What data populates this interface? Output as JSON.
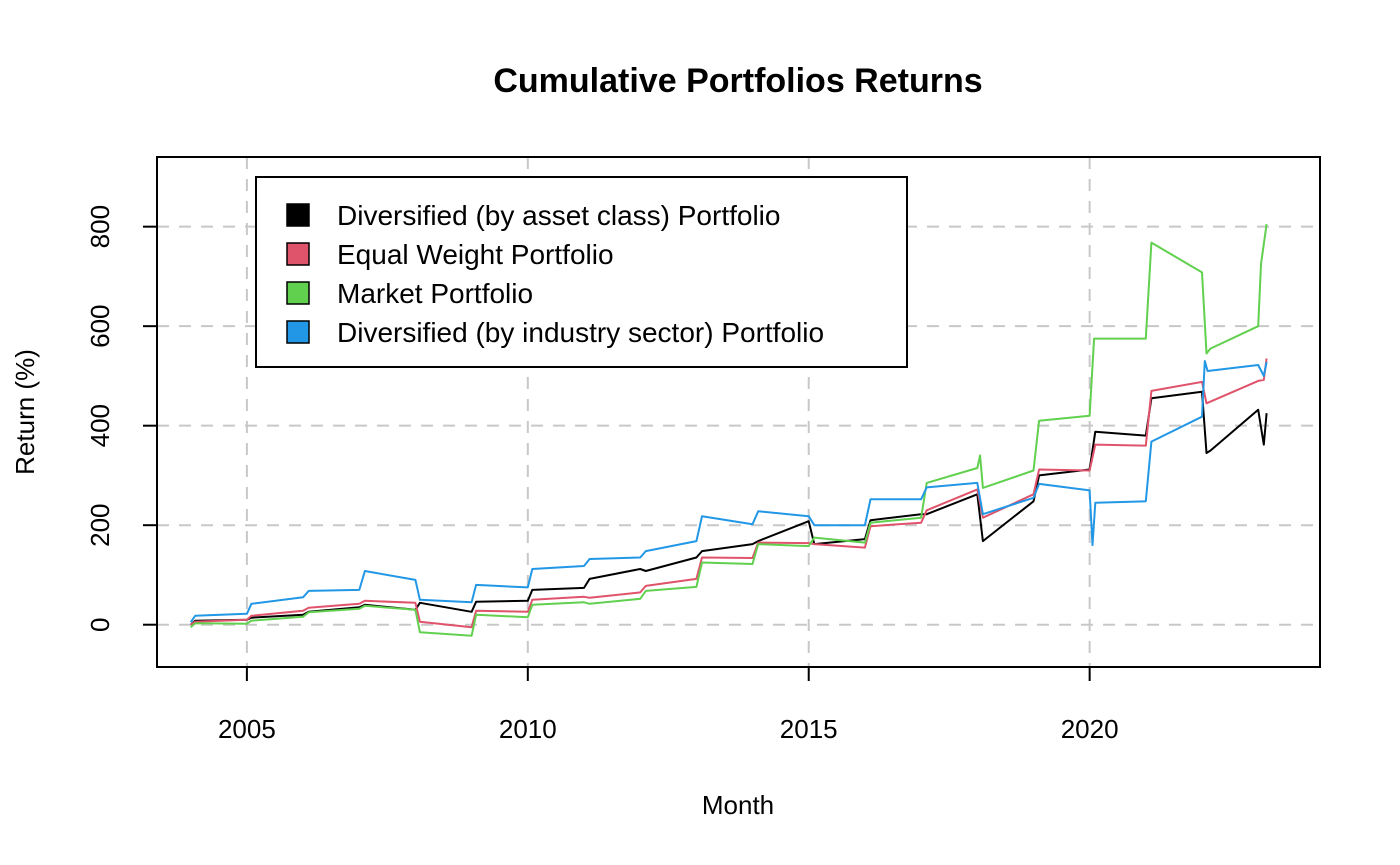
{
  "chart_data": {
    "type": "line",
    "title": "Cumulative Portfolios Returns",
    "xlabel": "Month",
    "ylabel": "Return (%)",
    "xlim": [
      2003.4,
      2024.1
    ],
    "ylim": [
      -85,
      940
    ],
    "x_ticks": [
      2005,
      2010,
      2015,
      2020
    ],
    "y_ticks": [
      0,
      200,
      400,
      600,
      800
    ],
    "grid": true,
    "legend_position": "top-left",
    "series": [
      {
        "name": "Diversified (by asset class) Portfolio",
        "color": "#000000",
        "x": [
          2004.0,
          2004.08,
          2005.0,
          2005.08,
          2006.0,
          2006.1,
          2007.0,
          2007.1,
          2008.0,
          2008.08,
          2009.0,
          2009.08,
          2010.0,
          2010.08,
          2011.0,
          2011.1,
          2012.0,
          2012.1,
          2013.0,
          2013.1,
          2014.0,
          2014.1,
          2015.0,
          2015.1,
          2016.0,
          2016.1,
          2017.0,
          2017.1,
          2018.0,
          2018.1,
          2019.0,
          2019.1,
          2020.0,
          2020.1,
          2021.0,
          2021.1,
          2022.0,
          2022.08,
          2022.15,
          2023.0,
          2023.1,
          2023.15
        ],
        "y": [
          0,
          8,
          10,
          14,
          20,
          26,
          35,
          40,
          30,
          44,
          26,
          46,
          48,
          70,
          74,
          92,
          112,
          108,
          135,
          148,
          162,
          168,
          208,
          162,
          172,
          210,
          222,
          222,
          262,
          168,
          248,
          300,
          312,
          388,
          380,
          455,
          468,
          345,
          350,
          432,
          362,
          425
        ]
      },
      {
        "name": "Equal Weight Portfolio",
        "color": "#df536b",
        "x": [
          2004.0,
          2004.08,
          2005.0,
          2005.08,
          2006.0,
          2006.1,
          2007.0,
          2007.1,
          2008.0,
          2008.08,
          2009.0,
          2009.08,
          2010.0,
          2010.08,
          2011.0,
          2011.1,
          2012.0,
          2012.1,
          2013.0,
          2013.1,
          2014.0,
          2014.1,
          2015.0,
          2015.1,
          2016.0,
          2016.1,
          2017.0,
          2017.1,
          2018.0,
          2018.1,
          2019.0,
          2019.1,
          2020.0,
          2020.1,
          2021.0,
          2021.1,
          2022.0,
          2022.08,
          2023.0,
          2023.1,
          2023.15
        ],
        "y": [
          0,
          6,
          10,
          18,
          28,
          34,
          42,
          48,
          44,
          6,
          -5,
          28,
          26,
          50,
          56,
          54,
          65,
          78,
          92,
          135,
          134,
          165,
          164,
          162,
          155,
          198,
          205,
          230,
          272,
          215,
          262,
          312,
          310,
          362,
          360,
          470,
          488,
          445,
          490,
          492,
          535
        ]
      },
      {
        "name": "Market Portfolio",
        "color": "#61d04f",
        "x": [
          2004.0,
          2004.08,
          2005.0,
          2005.08,
          2006.0,
          2006.1,
          2007.0,
          2007.1,
          2008.0,
          2008.08,
          2009.0,
          2009.08,
          2010.0,
          2010.08,
          2011.0,
          2011.1,
          2012.0,
          2012.1,
          2013.0,
          2013.1,
          2014.0,
          2014.1,
          2015.0,
          2015.1,
          2016.0,
          2016.1,
          2017.0,
          2017.1,
          2018.0,
          2018.05,
          2018.1,
          2019.0,
          2019.1,
          2020.0,
          2020.08,
          2021.0,
          2021.1,
          2022.0,
          2022.08,
          2022.15,
          2023.0,
          2023.05,
          2023.15
        ],
        "y": [
          -5,
          3,
          2,
          8,
          16,
          25,
          32,
          38,
          30,
          -15,
          -22,
          20,
          15,
          40,
          45,
          42,
          52,
          68,
          76,
          125,
          122,
          162,
          158,
          175,
          165,
          205,
          215,
          285,
          315,
          340,
          275,
          310,
          410,
          420,
          575,
          575,
          768,
          708,
          545,
          555,
          600,
          725,
          805
        ]
      },
      {
        "name": "Diversified (by industry sector) Portfolio",
        "color": "#2297e6",
        "x": [
          2004.0,
          2004.08,
          2005.0,
          2005.08,
          2006.0,
          2006.1,
          2007.0,
          2007.1,
          2008.0,
          2008.08,
          2009.0,
          2009.08,
          2010.0,
          2010.08,
          2011.0,
          2011.1,
          2012.0,
          2012.1,
          2013.0,
          2013.1,
          2014.0,
          2014.1,
          2015.0,
          2015.1,
          2016.0,
          2016.1,
          2017.0,
          2017.1,
          2018.0,
          2018.1,
          2019.0,
          2019.1,
          2020.0,
          2020.05,
          2020.1,
          2021.0,
          2021.1,
          2022.0,
          2022.05,
          2022.1,
          2023.0,
          2023.1,
          2023.15
        ],
        "y": [
          5,
          18,
          22,
          42,
          55,
          68,
          70,
          108,
          90,
          50,
          45,
          80,
          75,
          112,
          118,
          132,
          135,
          148,
          168,
          218,
          202,
          228,
          218,
          200,
          200,
          252,
          252,
          276,
          285,
          222,
          255,
          283,
          270,
          160,
          245,
          248,
          368,
          418,
          530,
          510,
          522,
          500,
          528
        ]
      }
    ]
  }
}
